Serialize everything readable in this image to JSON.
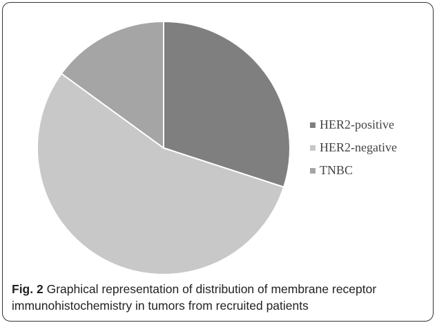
{
  "chart_data": {
    "type": "pie",
    "categories": [
      "HER2-positive",
      "HER2-negative",
      "TNBC"
    ],
    "values": [
      30,
      55,
      15
    ],
    "colors": [
      "#7f7f7f",
      "#c8c8c8",
      "#a5a5a5"
    ],
    "legend": "right"
  },
  "caption": {
    "label": "Fig. 2",
    "text": "Graphical representation of distribution of membrane receptor immunohistochemistry in tumors from recruited patients"
  }
}
